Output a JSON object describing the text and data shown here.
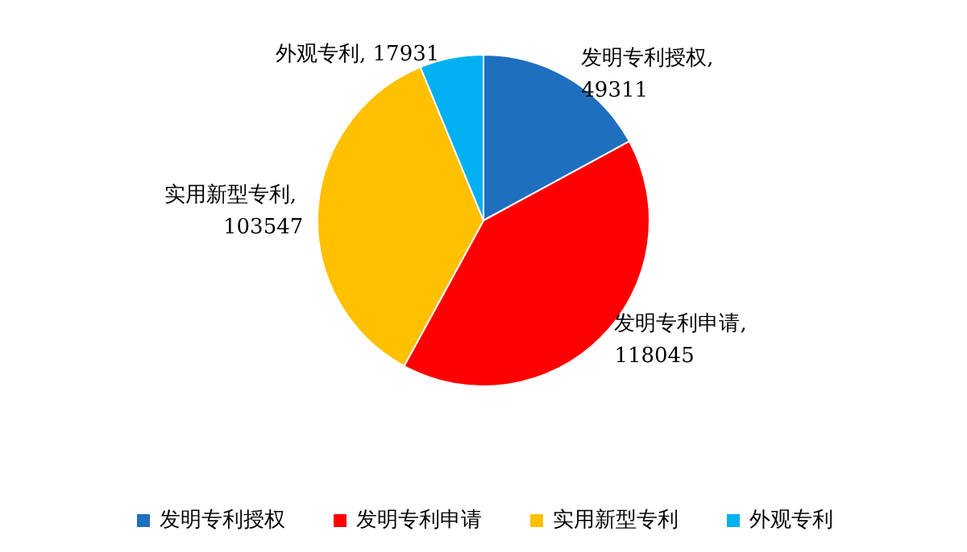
{
  "chart_data": {
    "type": "pie",
    "categories": [
      "发明专利授权",
      "发明专利申请",
      "实用新型专利",
      "外观专利"
    ],
    "values": [
      49311,
      118045,
      103547,
      17931
    ],
    "colors": [
      "#1f6fbf",
      "#ff0000",
      "#ffc000",
      "#00b0f0"
    ],
    "value_labels": [
      "发明专利授权, 49311",
      "发明专利申请, 118045",
      "实用新型专利, 103547",
      "外观专利, 17931"
    ],
    "legend": "bottom"
  }
}
